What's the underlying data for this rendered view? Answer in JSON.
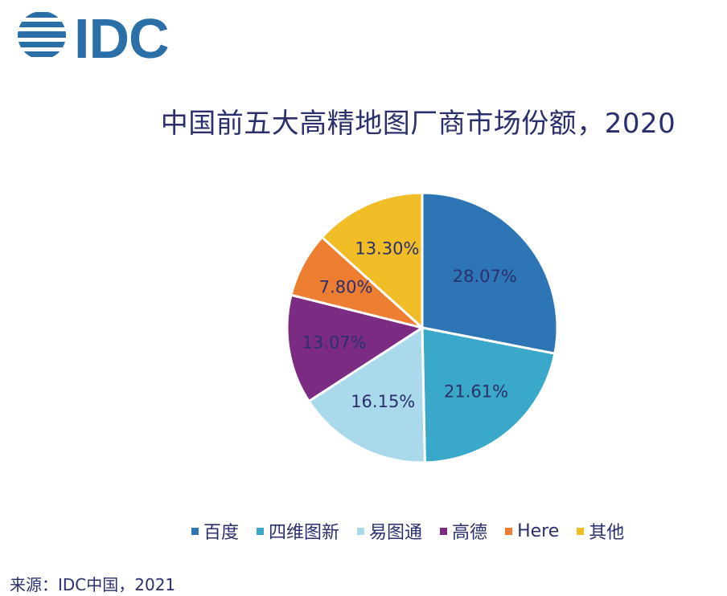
{
  "brand": {
    "logo_text": "IDC",
    "logo_color": "#2a6fa8"
  },
  "chart_data": {
    "type": "pie",
    "title": "中国前五大高精地图厂商市场份额，2020",
    "categories": [
      "百度",
      "四维图新",
      "易图通",
      "高德",
      "Here",
      "其他"
    ],
    "values": [
      28.07,
      21.61,
      16.15,
      13.07,
      7.8,
      13.3
    ],
    "labels": [
      "28.07%",
      "21.61%",
      "16.15%",
      "13.07%",
      "7.80%",
      "13.30%"
    ],
    "colors": [
      "#2e75b6",
      "#3aa8c8",
      "#a9d9ea",
      "#7b2c82",
      "#ed7d31",
      "#f0bd26"
    ],
    "legend_placement": "bottom"
  },
  "source": "来源：IDC中国，2021"
}
